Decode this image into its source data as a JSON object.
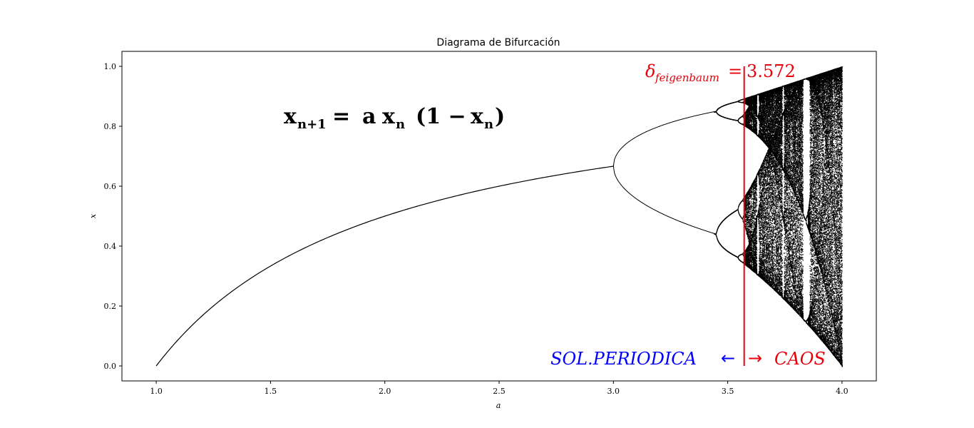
{
  "chart_data": {
    "type": "scatter",
    "title": "Diagrama de Bifurcación",
    "xlabel": "a",
    "ylabel": "x",
    "xlim": [
      0.85,
      4.15
    ],
    "ylim": [
      -0.05,
      1.05
    ],
    "xticks": [
      "1.0",
      "1.5",
      "2.0",
      "2.5",
      "3.0",
      "3.5",
      "4.0"
    ],
    "yticks": [
      "0.0",
      "0.2",
      "0.4",
      "0.6",
      "0.8",
      "1.0"
    ],
    "grid": false,
    "legend": "none",
    "map": "logistic",
    "a_range": [
      1.0,
      4.0
    ],
    "point_color": "#000000",
    "equation": {
      "x": "x",
      "n1": "n+1",
      "eq": "=",
      "a": "a",
      "n": "n",
      "open": "(1 −",
      "close": ")"
    },
    "feigenbaum_line": {
      "x": 3.572,
      "color": "#e8000b",
      "label_symbol": "δ",
      "label_subscript": "feigenbaum",
      "label_eq": "=",
      "label_value": "3.572"
    },
    "regions": {
      "left": "SOL.PERIODICA",
      "left_arrow": "←",
      "right_arrow": "→",
      "right": "CAOS",
      "left_color": "#0000ff",
      "right_color": "#e8000b"
    }
  }
}
